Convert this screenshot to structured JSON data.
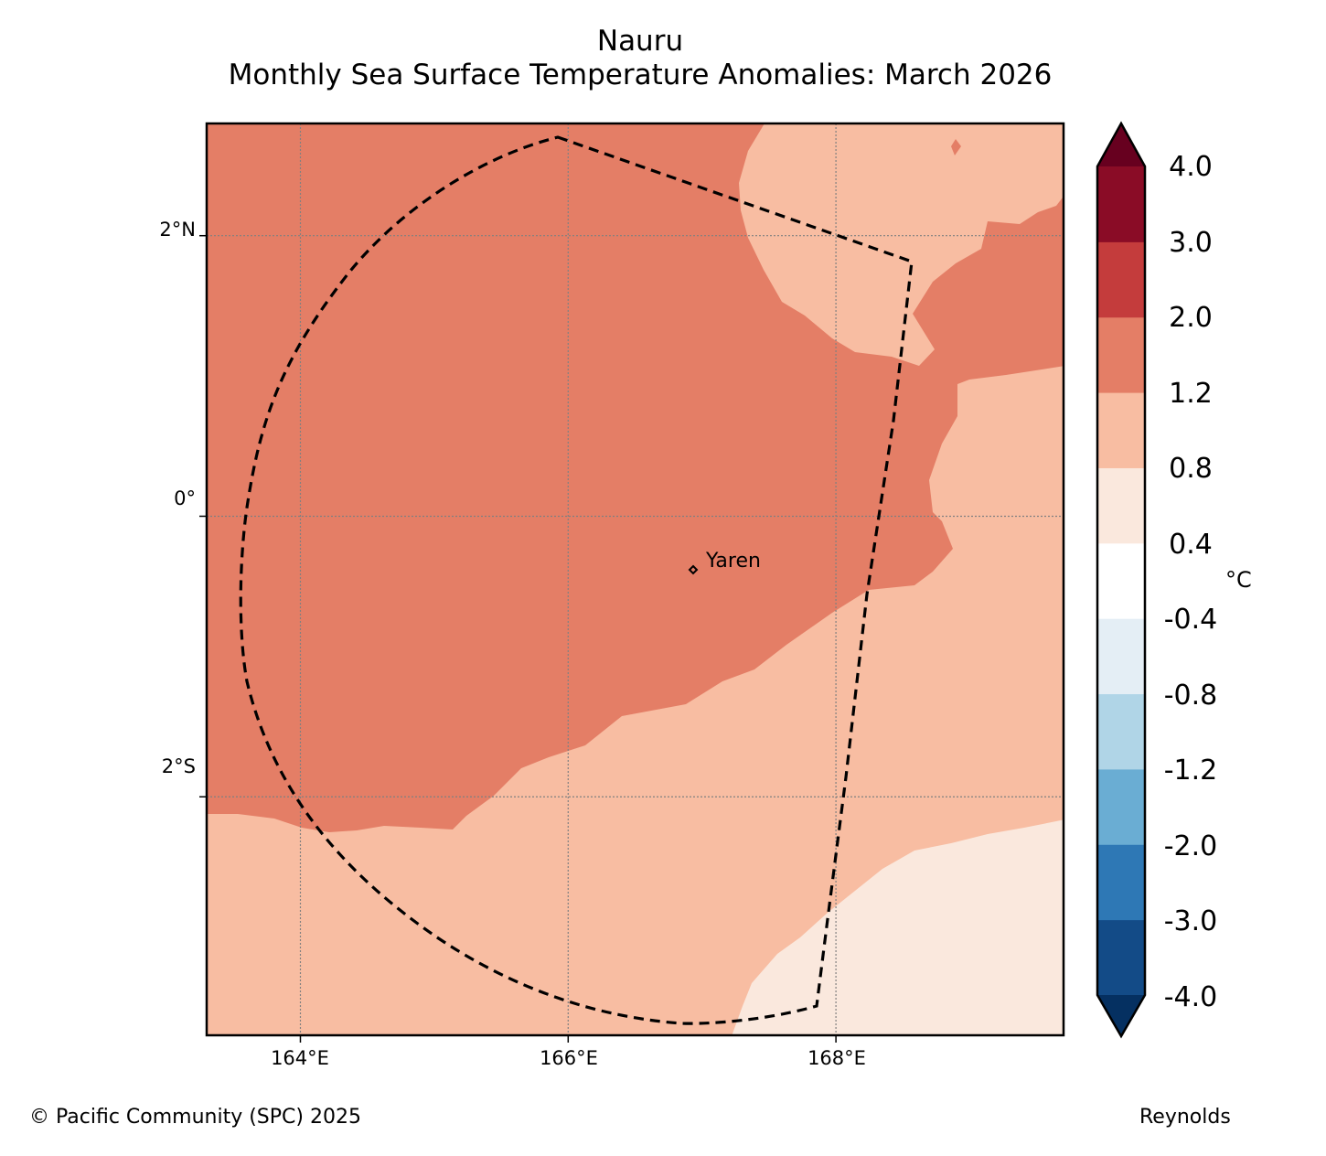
{
  "title": {
    "line1": "Nauru",
    "line2": "Monthly Sea Surface Temperature Anomalies: March 2026"
  },
  "axes": {
    "lat_ticks": [
      "2°N",
      "0°",
      "2°S"
    ],
    "lon_ticks": [
      "164°E",
      "166°E",
      "168°E"
    ],
    "lat_values": [
      2,
      0,
      -2
    ],
    "lon_values": [
      164,
      166,
      168
    ],
    "lat_range": [
      -3.7,
      2.8
    ],
    "lon_range": [
      163.3,
      169.7
    ]
  },
  "place": {
    "name": "Yaren",
    "lon": 166.92,
    "lat": -0.55
  },
  "colorbar": {
    "unit": "°C",
    "labels": [
      "4.0",
      "3.0",
      "2.0",
      "1.2",
      "0.8",
      "0.4",
      "-0.4",
      "-0.8",
      "-1.2",
      "-2.0",
      "-3.0",
      "-4.0"
    ],
    "colors": [
      "#053061",
      "#134b87",
      "#2e78b5",
      "#6aadd3",
      "#b0d5e7",
      "#e4eef5",
      "#ffffff",
      "#fae8dd",
      "#f8bda2",
      "#e47e66",
      "#c43c3c",
      "#8a0c26",
      "#67001f"
    ]
  },
  "legend_fill_colors": {
    "strong_warm": "#e47e66",
    "warm": "#f8bda2",
    "slight_warm": "#fae8dd",
    "grid": "#808080",
    "boundary": "#000000"
  },
  "footer": {
    "credit": "© Pacific Community (SPC) 2025",
    "source": "Reynolds"
  }
}
